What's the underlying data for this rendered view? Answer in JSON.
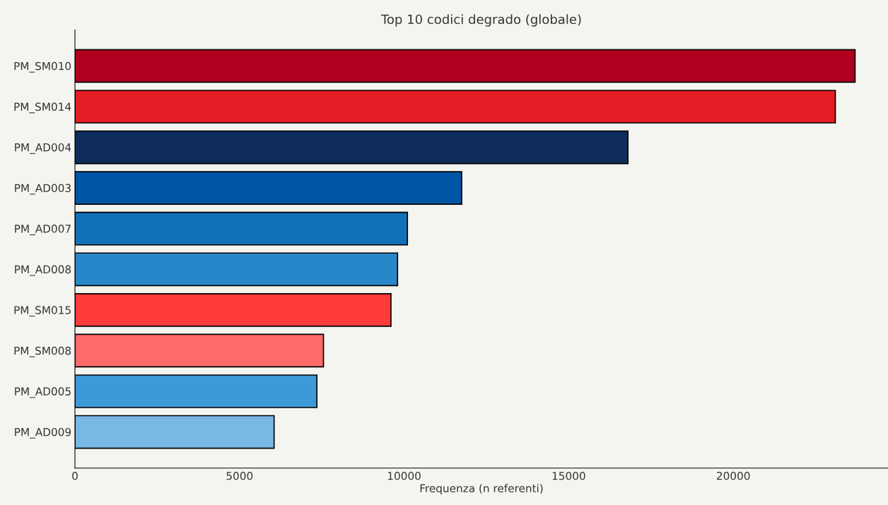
{
  "chart_data": {
    "type": "bar",
    "orientation": "horizontal",
    "title": "Top 10 codici degrado (globale)",
    "xlabel": "Frequenza (n referenti)",
    "categories": [
      "PM_SM010",
      "PM_SM014",
      "PM_AD004",
      "PM_AD003",
      "PM_AD007",
      "PM_AD008",
      "PM_SM015",
      "PM_SM008",
      "PM_AD005",
      "PM_AD009"
    ],
    "values": [
      23700,
      23100,
      16800,
      11750,
      10100,
      9800,
      9600,
      7550,
      7350,
      6050
    ],
    "colors": [
      "#b00020",
      "#e31e24",
      "#0f2d5c",
      "#0055a4",
      "#1170b8",
      "#2787c8",
      "#ff3b3b",
      "#ff6b6b",
      "#3d9ad8",
      "#7ab8e4"
    ],
    "xlim": [
      0,
      24700
    ],
    "xticks": [
      0,
      5000,
      10000,
      15000,
      20000
    ],
    "grid": false,
    "legend": false
  }
}
